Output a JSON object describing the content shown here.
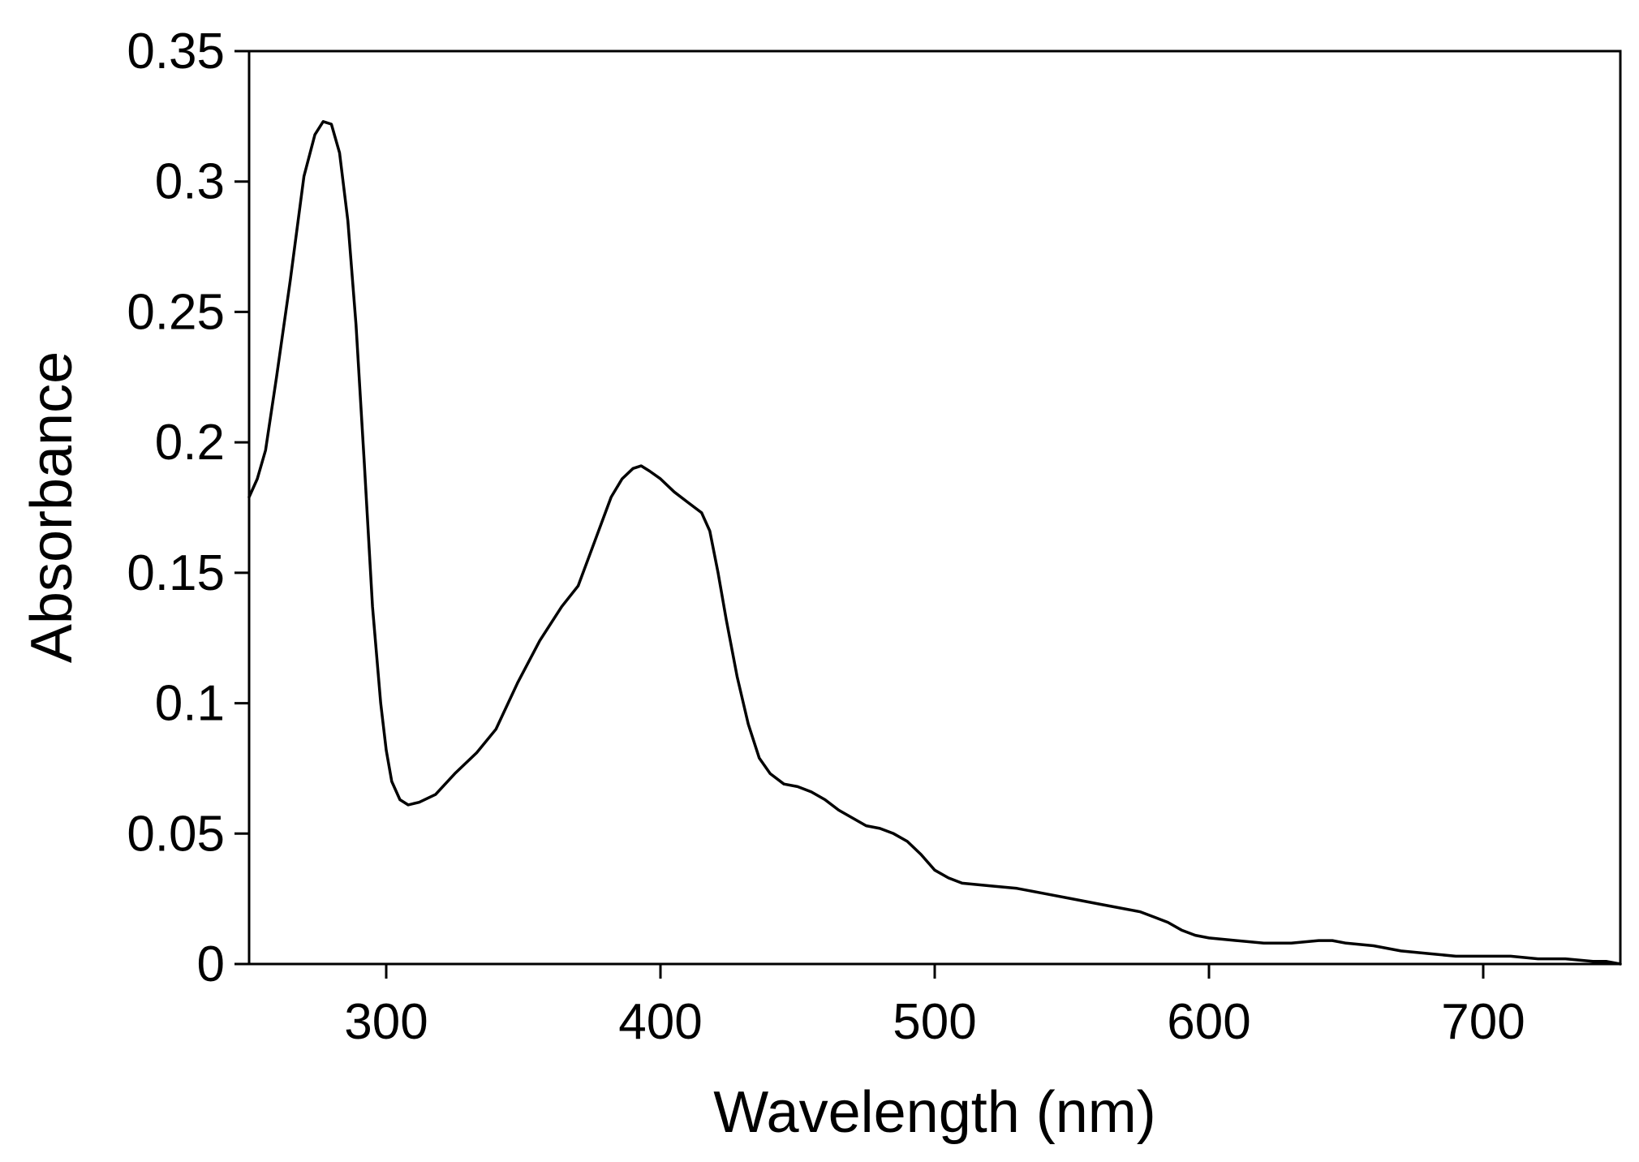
{
  "chart_data": {
    "type": "line",
    "title": "",
    "xlabel": "Wavelength (nm)",
    "ylabel": "Absorbance",
    "xlim": [
      250,
      750
    ],
    "ylim": [
      0,
      0.35
    ],
    "xticks": [
      300,
      400,
      500,
      600,
      700
    ],
    "yticks": [
      0,
      0.05,
      0.1,
      0.15,
      0.2,
      0.25,
      0.3,
      0.35
    ],
    "xtick_labels": [
      "300",
      "400",
      "500",
      "600",
      "700"
    ],
    "ytick_labels": [
      "0",
      "0.05",
      "0.1",
      "0.15",
      "0.2",
      "0.25",
      "0.3",
      "0.35"
    ],
    "grid": false,
    "legend": "none",
    "line_color": "#000000",
    "series": [
      {
        "x": [
          250,
          253,
          256,
          260,
          265,
          270,
          274,
          277,
          280,
          283,
          286,
          289,
          292,
          295,
          298,
          300,
          302,
          305,
          308,
          312,
          318,
          325,
          333,
          340,
          348,
          356,
          364,
          370,
          376,
          382,
          386,
          390,
          393,
          396,
          400,
          405,
          410,
          415,
          418,
          421,
          424,
          428,
          432,
          436,
          440,
          445,
          450,
          455,
          460,
          465,
          470,
          475,
          480,
          485,
          490,
          495,
          500,
          505,
          510,
          520,
          530,
          540,
          550,
          560,
          570,
          575,
          580,
          585,
          590,
          595,
          600,
          610,
          620,
          630,
          640,
          645,
          650,
          660,
          670,
          680,
          690,
          700,
          710,
          720,
          730,
          740,
          745,
          750
        ],
        "y": [
          0.179,
          0.186,
          0.197,
          0.225,
          0.262,
          0.302,
          0.318,
          0.323,
          0.322,
          0.311,
          0.285,
          0.245,
          0.192,
          0.137,
          0.1,
          0.082,
          0.07,
          0.063,
          0.061,
          0.062,
          0.065,
          0.073,
          0.081,
          0.09,
          0.108,
          0.124,
          0.137,
          0.145,
          0.162,
          0.179,
          0.186,
          0.19,
          0.191,
          0.189,
          0.186,
          0.181,
          0.177,
          0.173,
          0.166,
          0.15,
          0.132,
          0.11,
          0.092,
          0.079,
          0.073,
          0.069,
          0.068,
          0.066,
          0.063,
          0.059,
          0.056,
          0.053,
          0.052,
          0.05,
          0.047,
          0.042,
          0.036,
          0.033,
          0.031,
          0.03,
          0.029,
          0.027,
          0.025,
          0.023,
          0.021,
          0.02,
          0.018,
          0.016,
          0.013,
          0.011,
          0.01,
          0.009,
          0.008,
          0.008,
          0.009,
          0.009,
          0.008,
          0.007,
          0.005,
          0.004,
          0.003,
          0.003,
          0.003,
          0.002,
          0.002,
          0.001,
          0.001,
          0.0
        ]
      }
    ]
  }
}
